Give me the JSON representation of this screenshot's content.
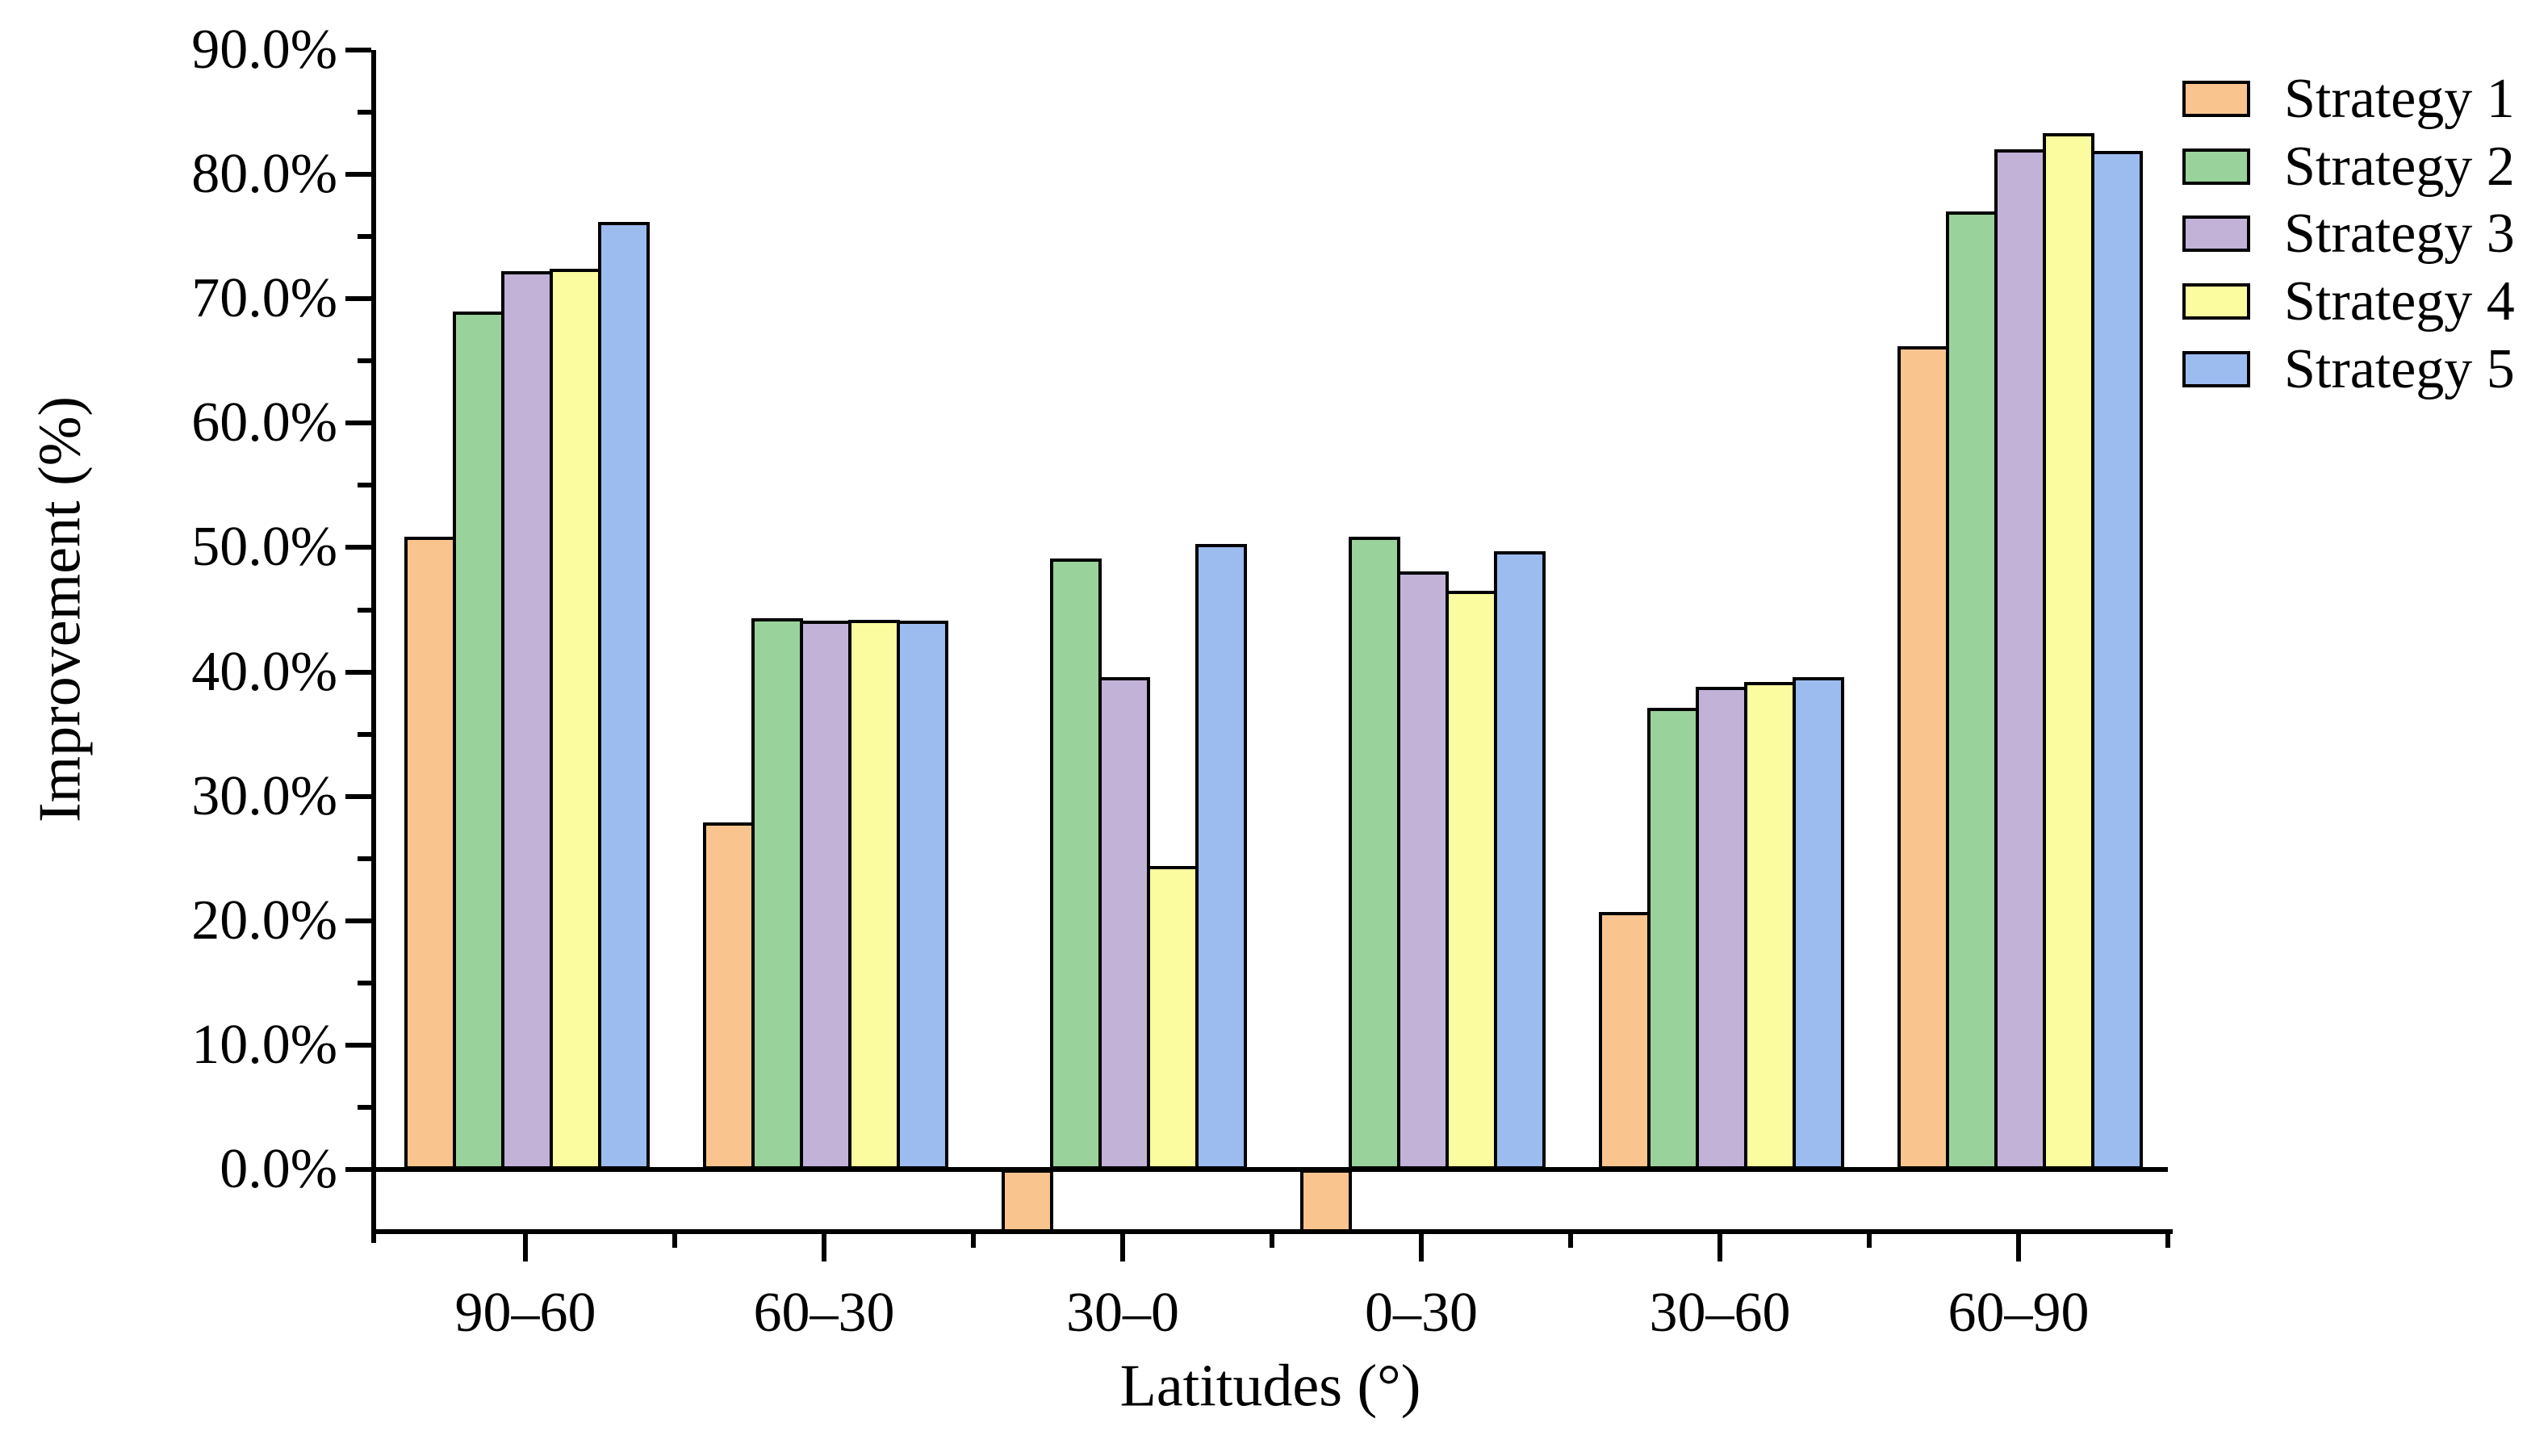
{
  "chart_data": {
    "type": "bar",
    "title": "",
    "xlabel": "Latitudes (°)",
    "ylabel": "Improvement (%)",
    "categories": [
      "90–60",
      "60–30",
      "30–0",
      "0–30",
      "30–60",
      "60–90"
    ],
    "series": [
      {
        "name": "Strategy 1",
        "color": "#FAC48F",
        "values": [
          50.9,
          27.9,
          -4.8,
          -4.8,
          20.7,
          66.2
        ]
      },
      {
        "name": "Strategy 2",
        "color": "#9AD29B",
        "values": [
          69.0,
          44.3,
          49.1,
          50.9,
          37.1,
          77.0
        ]
      },
      {
        "name": "Strategy 3",
        "color": "#C2B2D8",
        "values": [
          72.2,
          44.1,
          39.6,
          48.1,
          38.8,
          82.0
        ]
      },
      {
        "name": "Strategy 4",
        "color": "#FBFB9F",
        "values": [
          72.4,
          44.2,
          24.4,
          46.5,
          39.2,
          83.3
        ]
      },
      {
        "name": "Strategy 5",
        "color": "#9CBCF0",
        "values": [
          76.2,
          44.1,
          50.3,
          49.7,
          39.6,
          81.9
        ]
      }
    ],
    "y_axis": {
      "min": -5,
      "max": 90,
      "major_step": 10,
      "minor_step": 5,
      "ticks": [
        {
          "label": "90.0%",
          "value": 90
        },
        {
          "label": "80.0%",
          "value": 80
        },
        {
          "label": "70.0%",
          "value": 70
        },
        {
          "label": "60.0%",
          "value": 60
        },
        {
          "label": "50.0%",
          "value": 50
        },
        {
          "label": "40.0%",
          "value": 40
        },
        {
          "label": "30.0%",
          "value": 30
        },
        {
          "label": "20.0%",
          "value": 20
        },
        {
          "label": "10.0%",
          "value": 10
        },
        {
          "label": "0.0%",
          "value": 0
        }
      ]
    },
    "legend_position": "top-right-outside",
    "grid": false,
    "bar_border_color": "#000000"
  }
}
